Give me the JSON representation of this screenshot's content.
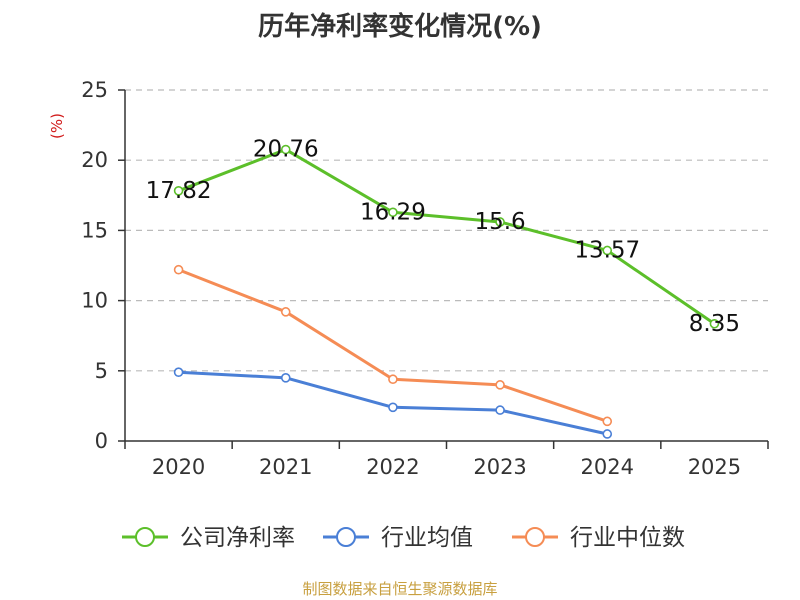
{
  "chart_data": {
    "type": "line",
    "title": "历年净利率变化情况(%)",
    "ylabel": "(%)",
    "xlabel": "",
    "categories": [
      "2020",
      "2021",
      "2022",
      "2023",
      "2024",
      "2025"
    ],
    "ylim": [
      0,
      25
    ],
    "yticks": [
      0,
      5,
      10,
      15,
      20,
      25
    ],
    "grid": true,
    "legend_position": "bottom",
    "series": [
      {
        "name": "公司净利率",
        "color": "#5cbf2a",
        "values": [
          17.82,
          20.76,
          16.29,
          15.6,
          13.57,
          8.35
        ],
        "labels": [
          "17.82",
          "20.76",
          "16.29",
          "15.6",
          "13.57",
          "8.35"
        ]
      },
      {
        "name": "行业均值",
        "color": "#4a7fd6",
        "values": [
          4.9,
          4.5,
          2.4,
          2.2,
          0.5,
          null
        ]
      },
      {
        "name": "行业中位数",
        "color": "#f58c55",
        "values": [
          12.2,
          9.2,
          4.4,
          4.0,
          1.4,
          null
        ]
      }
    ]
  },
  "footer": {
    "source": "制图数据来自恒生聚源数据库"
  }
}
